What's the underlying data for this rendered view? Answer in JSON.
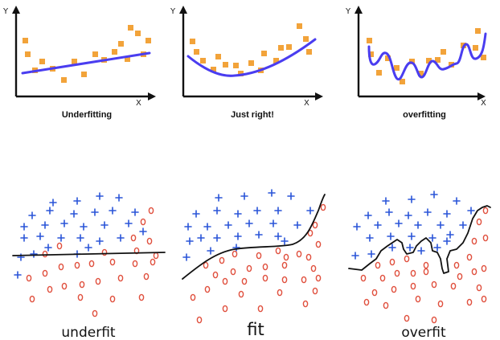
{
  "top_panels": [
    {
      "caption": "Underfitting",
      "y_axis_label": "Y",
      "x_axis_label": "X"
    },
    {
      "caption": "Just right!",
      "y_axis_label": "Y",
      "x_axis_label": "X"
    },
    {
      "caption": "overfitting",
      "y_axis_label": "Y",
      "x_axis_label": "X"
    }
  ],
  "bottom_panels": [
    {
      "caption": "underfit"
    },
    {
      "caption": "fit"
    },
    {
      "caption": "overfit"
    }
  ],
  "colors": {
    "data_points": "#f2a33a",
    "fit_curve": "#4a3df0",
    "positive_class": "#2a55d8",
    "negative_class": "#e0503e",
    "decision_boundary": "#111111"
  },
  "legend_icons": {
    "positive_marker": "plus-icon",
    "negative_marker": "circle-icon"
  }
}
